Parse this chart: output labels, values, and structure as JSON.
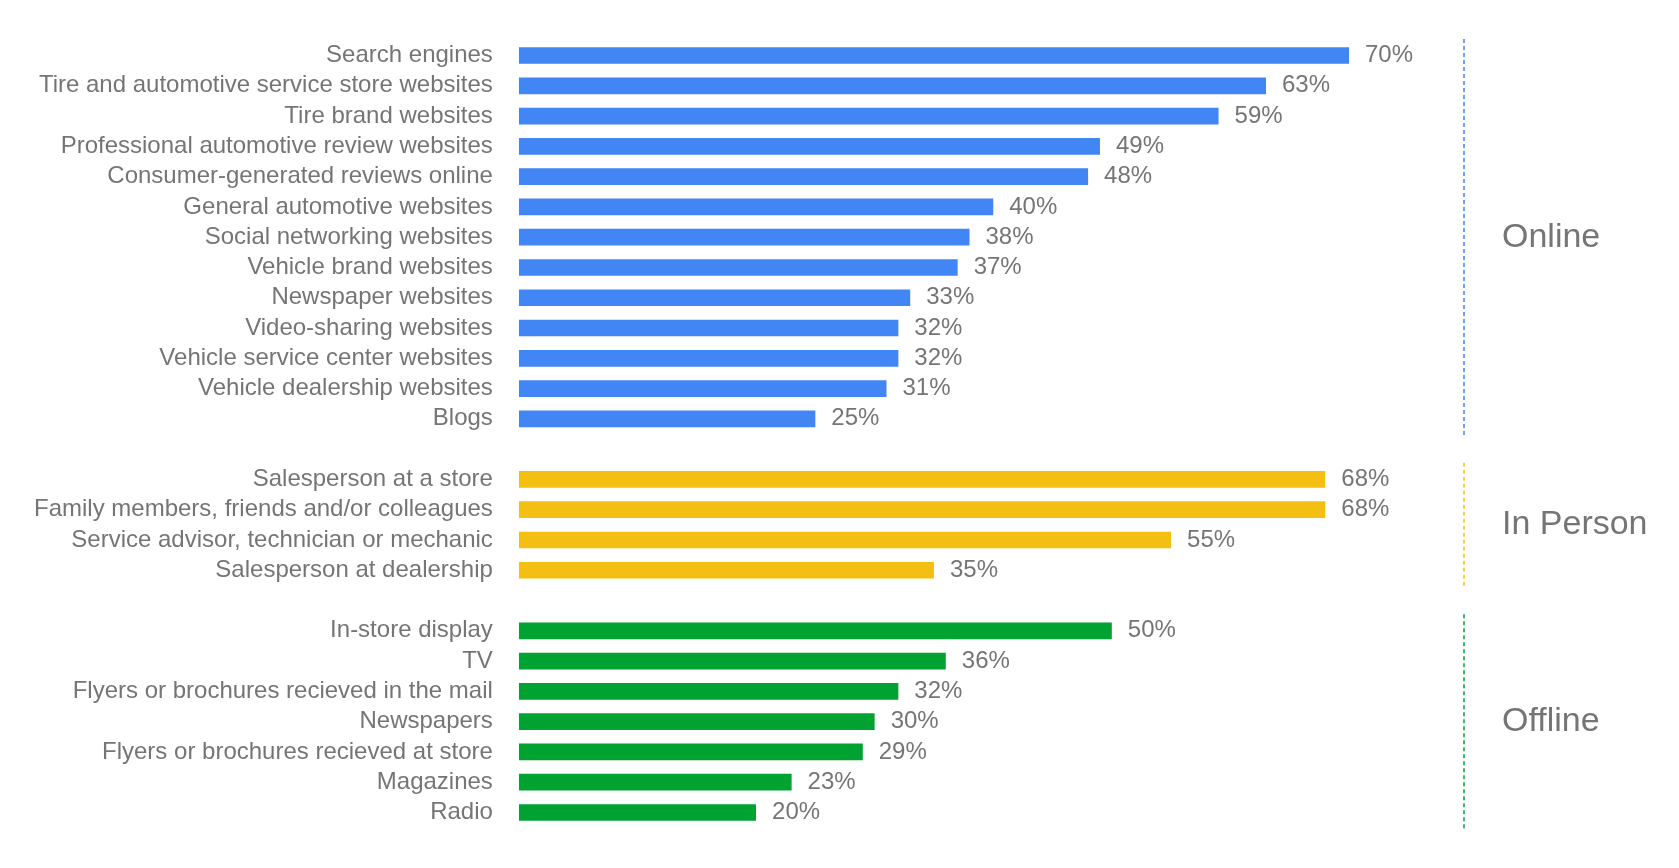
{
  "chart_data": {
    "type": "bar",
    "orientation": "horizontal",
    "legend": false,
    "grid": false,
    "categories": [
      "Search engines",
      "Tire and automotive service store websites",
      "Tire brand websites",
      "Professional automotive review websites",
      "Consumer-generated reviews online",
      "General automotive websites",
      "Social networking websites",
      "Vehicle brand websites",
      "Newspaper websites",
      "Video-sharing websites",
      "Vehicle service center websites",
      "Vehicle dealership websites",
      "Blogs",
      null,
      "Salesperson at a store",
      "Family members, friends and/or colleagues",
      "Service advisor, technician or mechanic",
      "Salesperson at dealership",
      null,
      "In-store display",
      "TV",
      "Flyers or brochures recieved in the mail",
      "Newspapers",
      "Flyers or brochures recieved at store",
      "Magazines",
      "Radio"
    ],
    "series": [
      {
        "name": "Online",
        "color": "#4285f4",
        "values": [
          70,
          63,
          59,
          49,
          48,
          40,
          38,
          37,
          33,
          32,
          32,
          31,
          25,
          null,
          null,
          null,
          null,
          null,
          null,
          null,
          null,
          null,
          null,
          null,
          null,
          null
        ],
        "value_labels": [
          "70%",
          "63%",
          "59%",
          "49%",
          "48%",
          "40%",
          "38%",
          "37%",
          "33%",
          "32%",
          "32%",
          "31%",
          "25%",
          null,
          null,
          null,
          null,
          null,
          null,
          null,
          null,
          null,
          null,
          null,
          null,
          null
        ]
      },
      {
        "name": "In Person",
        "color": "#f4bf13",
        "values": [
          null,
          null,
          null,
          null,
          null,
          null,
          null,
          null,
          null,
          null,
          null,
          null,
          null,
          null,
          68,
          68,
          55,
          35,
          null,
          null,
          null,
          null,
          null,
          null,
          null,
          null
        ],
        "value_labels": [
          null,
          null,
          null,
          null,
          null,
          null,
          null,
          null,
          null,
          null,
          null,
          null,
          null,
          null,
          "68%",
          "68%",
          "55%",
          "35%",
          null,
          null,
          null,
          null,
          null,
          null,
          null,
          null
        ]
      },
      {
        "name": "Offline",
        "color": "#00a331",
        "values": [
          null,
          null,
          null,
          null,
          null,
          null,
          null,
          null,
          null,
          null,
          null,
          null,
          null,
          null,
          null,
          null,
          null,
          null,
          null,
          50,
          36,
          32,
          30,
          29,
          23,
          20
        ],
        "value_labels": [
          null,
          null,
          null,
          null,
          null,
          null,
          null,
          null,
          null,
          null,
          null,
          null,
          null,
          null,
          null,
          null,
          null,
          null,
          null,
          "50%",
          "36%",
          "32%",
          "30%",
          "29%",
          "23%",
          "20%"
        ]
      }
    ]
  }
}
